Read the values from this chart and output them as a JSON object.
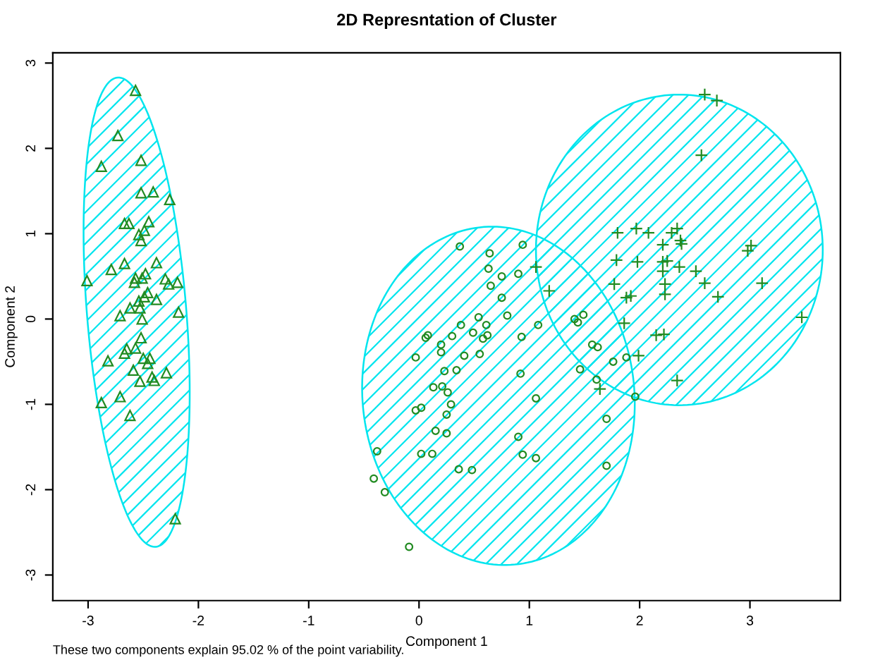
{
  "chart_data": {
    "type": "scatter",
    "title": "2D Represntation of Cluster",
    "xlabel": "Component 1",
    "ylabel": "Component 2",
    "annotations": [
      "These two components explain 95.02 % of the point variability."
    ],
    "xlim": [
      -3.32,
      3.82
    ],
    "ylim": [
      -3.3,
      3.12
    ],
    "xticks": [
      -3,
      -2,
      -1,
      0,
      1,
      2,
      3
    ],
    "yticks": [
      -3,
      -2,
      -1,
      0,
      1,
      2,
      3
    ],
    "grid": false,
    "legend": false,
    "series": [
      {
        "color": "#228b22",
        "marker": "triangle",
        "x": [
          -2.57,
          -2.73,
          -2.88,
          -2.52,
          -2.52,
          -2.41,
          -2.26,
          -2.67,
          -2.63,
          -2.45,
          -2.49,
          -2.54,
          -2.52,
          -2.67,
          -2.79,
          -2.38,
          -3.01,
          -2.57,
          -2.48,
          -2.51,
          -2.58,
          -2.3,
          -2.27,
          -2.19,
          -2.46,
          -2.49,
          -2.38,
          -2.54,
          -2.62,
          -2.53,
          -2.18,
          -2.71,
          -2.51,
          -2.52,
          -2.65,
          -2.57,
          -2.67,
          -2.5,
          -2.44,
          -2.46,
          -2.82,
          -2.59,
          -2.29,
          -2.42,
          -2.4,
          -2.53,
          -2.71,
          -2.88,
          -2.62,
          -2.21
        ],
        "values": [
          2.68,
          2.15,
          1.79,
          1.86,
          1.48,
          1.49,
          1.4,
          1.12,
          1.12,
          1.14,
          1.04,
          0.99,
          0.92,
          0.65,
          0.58,
          0.66,
          0.45,
          0.48,
          0.53,
          0.48,
          0.43,
          0.47,
          0.41,
          0.43,
          0.31,
          0.26,
          0.23,
          0.21,
          0.13,
          0.13,
          0.08,
          0.04,
          0.0,
          -0.22,
          -0.35,
          -0.34,
          -0.4,
          -0.46,
          -0.46,
          -0.52,
          -0.49,
          -0.6,
          -0.63,
          -0.68,
          -0.72,
          -0.73,
          -0.91,
          -0.98,
          -1.13,
          -2.34
        ]
      },
      {
        "color": "#228b22",
        "marker": "circle",
        "x": [
          0.37,
          0.64,
          0.94,
          0.63,
          0.75,
          0.9,
          0.65,
          0.75,
          0.8,
          0.54,
          0.38,
          0.61,
          1.08,
          0.08,
          0.06,
          0.3,
          0.49,
          0.62,
          0.58,
          0.93,
          0.2,
          0.2,
          0.41,
          0.55,
          -0.03,
          0.23,
          0.34,
          0.92,
          0.13,
          0.21,
          0.26,
          1.06,
          0.29,
          -0.03,
          0.02,
          0.25,
          0.15,
          0.25,
          0.9,
          -0.38,
          0.02,
          0.12,
          0.94,
          1.06,
          -0.41,
          0.36,
          0.48,
          -0.31,
          1.7,
          1.7,
          -0.09,
          1.41,
          1.44,
          1.49,
          1.57,
          1.62,
          1.76,
          1.88,
          1.46,
          1.61,
          1.96
        ],
        "values": [
          0.85,
          0.77,
          0.87,
          0.59,
          0.5,
          0.53,
          0.39,
          0.25,
          0.04,
          0.02,
          -0.07,
          -0.07,
          -0.07,
          -0.19,
          -0.22,
          -0.2,
          -0.16,
          -0.19,
          -0.23,
          -0.21,
          -0.3,
          -0.39,
          -0.43,
          -0.41,
          -0.45,
          -0.61,
          -0.6,
          -0.64,
          -0.8,
          -0.79,
          -0.86,
          -0.93,
          -1.0,
          -1.07,
          -1.04,
          -1.12,
          -1.31,
          -1.34,
          -1.38,
          -1.55,
          -1.58,
          -1.58,
          -1.59,
          -1.63,
          -1.87,
          -1.76,
          -1.77,
          -2.03,
          -1.17,
          -1.72,
          -2.67,
          0.0,
          -0.04,
          0.05,
          -0.3,
          -0.33,
          -0.5,
          -0.45,
          -0.59,
          -0.71,
          -0.91
        ]
      },
      {
        "color": "#228b22",
        "marker": "cross",
        "x": [
          2.59,
          2.7,
          2.56,
          1.8,
          1.97,
          2.08,
          2.29,
          2.34,
          2.37,
          2.38,
          2.21,
          1.79,
          1.98,
          2.21,
          2.25,
          2.36,
          2.21,
          2.51,
          3.01,
          2.98,
          1.06,
          1.77,
          2.23,
          2.59,
          3.11,
          2.23,
          1.88,
          1.92,
          2.71,
          1.18,
          1.86,
          3.47,
          2.15,
          2.22,
          1.99,
          2.34,
          1.64
        ],
        "values": [
          2.63,
          2.56,
          1.92,
          1.01,
          1.06,
          1.01,
          1.01,
          1.06,
          0.92,
          0.88,
          0.87,
          0.69,
          0.67,
          0.67,
          0.68,
          0.61,
          0.56,
          0.56,
          0.86,
          0.8,
          0.61,
          0.41,
          0.41,
          0.42,
          0.42,
          0.29,
          0.25,
          0.27,
          0.26,
          0.33,
          -0.05,
          0.02,
          -0.19,
          -0.18,
          -0.43,
          -0.72,
          -0.82
        ]
      }
    ]
  }
}
